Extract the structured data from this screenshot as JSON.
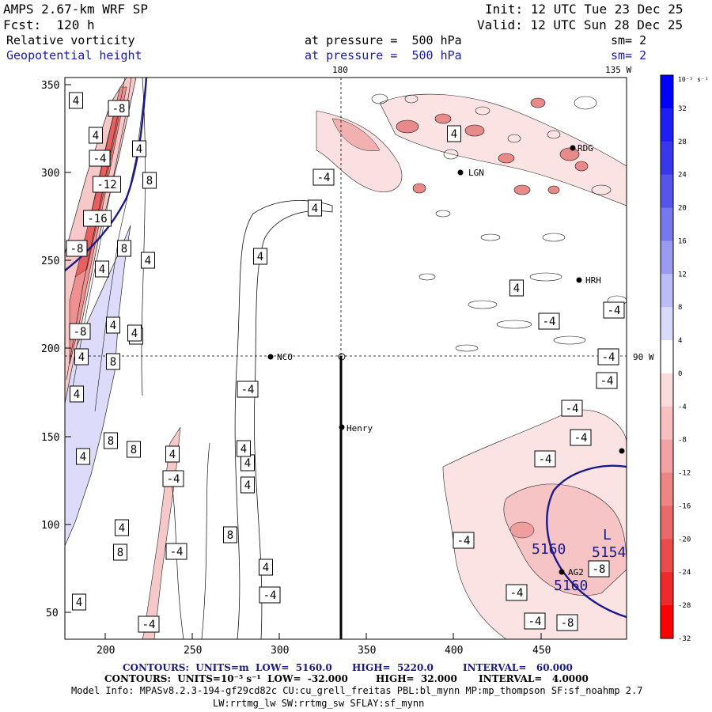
{
  "header": {
    "model": "AMPS 2.67-km WRF SP",
    "fcst": "Fcst:  120 h",
    "init": "Init: 12 UTC Tue 23 Dec 25",
    "valid": "Valid: 12 UTC Sun 28 Dec 25",
    "field1": "Relative vorticity",
    "field2": "Geopotential height",
    "level1": "at pressure =  500 hPa",
    "level2": "at pressure =  500 hPa",
    "sm1": "sm= 2",
    "sm2": "sm= 2"
  },
  "map": {
    "top_lon_label_1": "180",
    "top_lon_label_2": "135 W",
    "right_lon_label": "90 W",
    "x_ticks": [
      "200",
      "250",
      "300",
      "350",
      "400",
      "450"
    ],
    "y_ticks": [
      "350",
      "300",
      "250",
      "200",
      "150",
      "100",
      "50"
    ],
    "stations": [
      "RDG",
      "LGN",
      "HRH",
      "NCO",
      "Henry",
      "AG2"
    ],
    "height_labels": [
      "5160",
      "5154",
      "5160"
    ],
    "low_label": "L",
    "vort_labels": [
      "4",
      "-8",
      "4",
      "-4",
      "-12",
      "-16",
      "-8",
      "4",
      "8",
      "8",
      "4",
      "4",
      "8",
      "8",
      "4",
      "4",
      "-8",
      "4",
      "8",
      "8",
      "4",
      "8",
      "8",
      "4",
      "4",
      "4",
      "-4",
      "4",
      "4",
      "-4",
      "4",
      "4",
      "-4",
      "-4",
      "-4",
      "-4",
      "-4",
      "-4",
      "-4",
      "-4",
      "-4",
      "-4",
      "-4",
      "-4",
      "-8",
      "-8",
      "-4",
      "-4",
      "4",
      "4",
      "4",
      "4",
      "4"
    ]
  },
  "colorbar": {
    "unit": "10⁻⁵ s⁻¹",
    "labels": [
      "32",
      "28",
      "24",
      "20",
      "16",
      "12",
      "8",
      "4",
      "0",
      "-4",
      "-8",
      "-12",
      "-16",
      "-20",
      "-24",
      "-28",
      "-32"
    ],
    "colors": [
      "#0000ff",
      "#1e1ef5",
      "#3838eb",
      "#5555e8",
      "#7777ee",
      "#9a9af2",
      "#bcbcf7",
      "#dadafb",
      "#ffffff",
      "#fbdcdc",
      "#f7bfbf",
      "#f2a2a2",
      "#ee8585",
      "#ea6a6a",
      "#ea4c4c",
      "#f02a2a",
      "#ff0000"
    ]
  },
  "footer": {
    "contours1_a": "CONTOURS:  UNITS=m  LOW=  5160.0",
    "contours1_b": "HIGH=  5220.0",
    "contours1_c": "INTERVAL=   60.000",
    "contours2_a": "CONTOURS:  UNITS=10⁻⁵ s⁻¹  LOW=  -32.000",
    "contours2_b": "HIGH=  32.000",
    "contours2_c": "INTERVAL=   4.0000",
    "model_info": "Model Info: MPASv8.2.3-194-gf29cd82c CU:cu_grell_freitas PBL:bl_mynn MP:mp_thompson SF:sf_noahmp 2.7",
    "model_info2": "LW:rrtmg_lw SW:rrtmg_sw SFLAY:sf_mynn"
  }
}
